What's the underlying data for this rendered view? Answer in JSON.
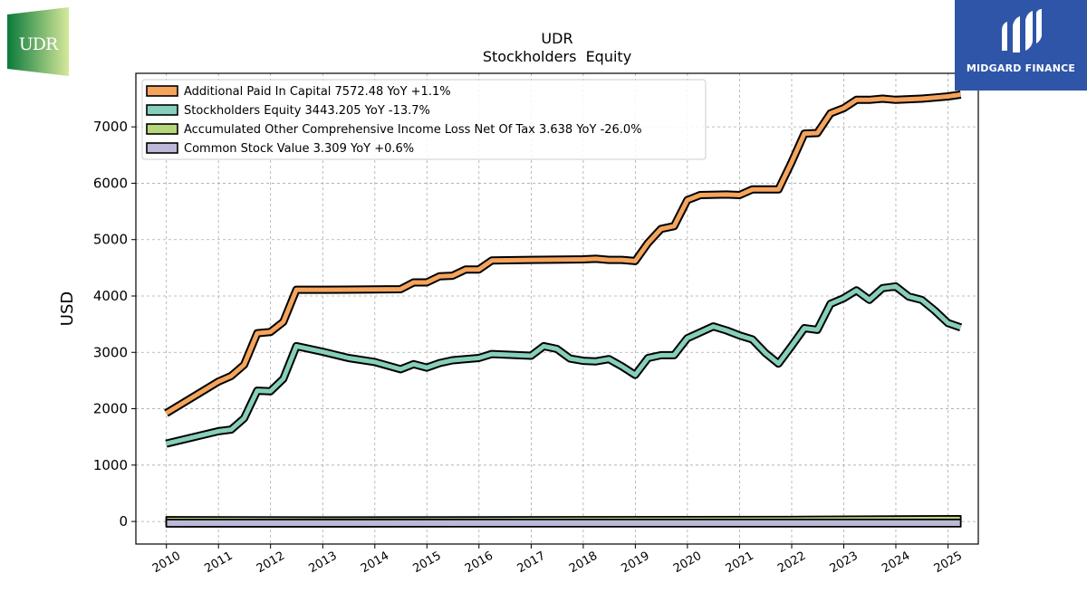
{
  "logos": {
    "left_text": "UDR",
    "left_colors": [
      "#0a7a3a",
      "#d6e89a"
    ],
    "right_text": "MIDGARD FINANCE",
    "right_bg": "#2e55a8"
  },
  "chart_data": {
    "type": "line",
    "title": "UDR",
    "subtitle": "Stockholders  Equity",
    "ylabel": "USD",
    "xlabel": "",
    "grid": true,
    "legend_position": "top-left",
    "ylim": [
      -400,
      7950
    ],
    "xlim": [
      "2009-06-01",
      "2025-08-01"
    ],
    "y_ticks": [
      0,
      1000,
      2000,
      3000,
      4000,
      5000,
      6000,
      7000
    ],
    "x_ticks": [
      "2010",
      "2011",
      "2012",
      "2013",
      "2014",
      "2015",
      "2016",
      "2017",
      "2018",
      "2019",
      "2020",
      "2021",
      "2022",
      "2023",
      "2024",
      "2025"
    ],
    "series": [
      {
        "name": "Additional Paid In Capital  7572.48 YoY +1.1%",
        "color": "#f4a45c",
        "points": [
          [
            "2009-12-31",
            1920
          ],
          [
            "2010-12-31",
            2480
          ],
          [
            "2011-03-31",
            2580
          ],
          [
            "2011-06-30",
            2780
          ],
          [
            "2011-09-30",
            3340
          ],
          [
            "2011-12-31",
            3360
          ],
          [
            "2012-03-31",
            3540
          ],
          [
            "2012-06-30",
            4110
          ],
          [
            "2012-12-31",
            4110
          ],
          [
            "2013-12-31",
            4115
          ],
          [
            "2014-06-30",
            4120
          ],
          [
            "2014-09-30",
            4240
          ],
          [
            "2014-12-31",
            4240
          ],
          [
            "2015-03-31",
            4350
          ],
          [
            "2015-06-30",
            4360
          ],
          [
            "2015-09-30",
            4470
          ],
          [
            "2015-12-31",
            4470
          ],
          [
            "2016-03-31",
            4630
          ],
          [
            "2016-12-31",
            4640
          ],
          [
            "2017-12-31",
            4650
          ],
          [
            "2018-03-31",
            4660
          ],
          [
            "2018-06-30",
            4640
          ],
          [
            "2018-09-30",
            4640
          ],
          [
            "2018-12-31",
            4620
          ],
          [
            "2019-03-31",
            4940
          ],
          [
            "2019-06-30",
            5190
          ],
          [
            "2019-09-30",
            5240
          ],
          [
            "2019-12-31",
            5700
          ],
          [
            "2020-03-31",
            5790
          ],
          [
            "2020-09-30",
            5800
          ],
          [
            "2020-12-31",
            5790
          ],
          [
            "2021-03-31",
            5890
          ],
          [
            "2021-06-30",
            5890
          ],
          [
            "2021-09-30",
            5890
          ],
          [
            "2021-12-31",
            6370
          ],
          [
            "2022-03-31",
            6880
          ],
          [
            "2022-06-30",
            6890
          ],
          [
            "2022-09-30",
            7240
          ],
          [
            "2022-12-31",
            7330
          ],
          [
            "2023-03-31",
            7480
          ],
          [
            "2023-06-30",
            7480
          ],
          [
            "2023-09-30",
            7500
          ],
          [
            "2023-12-31",
            7480
          ],
          [
            "2024-03-31",
            7490
          ],
          [
            "2024-06-30",
            7500
          ],
          [
            "2024-09-30",
            7520
          ],
          [
            "2024-12-31",
            7540
          ],
          [
            "2025-03-31",
            7572
          ]
        ]
      },
      {
        "name": "Stockholders Equity  3443.205 YoY -13.7%",
        "color": "#86cfba",
        "points": [
          [
            "2009-12-31",
            1380
          ],
          [
            "2010-12-31",
            1600
          ],
          [
            "2011-03-31",
            1630
          ],
          [
            "2011-06-30",
            1830
          ],
          [
            "2011-09-30",
            2320
          ],
          [
            "2011-12-31",
            2310
          ],
          [
            "2012-03-31",
            2530
          ],
          [
            "2012-06-30",
            3110
          ],
          [
            "2012-12-31",
            3010
          ],
          [
            "2013-06-30",
            2900
          ],
          [
            "2013-12-31",
            2830
          ],
          [
            "2014-06-30",
            2700
          ],
          [
            "2014-09-30",
            2790
          ],
          [
            "2014-12-31",
            2730
          ],
          [
            "2015-03-31",
            2810
          ],
          [
            "2015-06-30",
            2860
          ],
          [
            "2015-12-31",
            2900
          ],
          [
            "2016-03-31",
            2970
          ],
          [
            "2016-12-31",
            2940
          ],
          [
            "2017-03-31",
            3110
          ],
          [
            "2017-06-30",
            3060
          ],
          [
            "2017-09-30",
            2890
          ],
          [
            "2017-12-31",
            2850
          ],
          [
            "2018-03-31",
            2840
          ],
          [
            "2018-06-30",
            2880
          ],
          [
            "2018-09-30",
            2750
          ],
          [
            "2018-12-31",
            2600
          ],
          [
            "2019-03-31",
            2900
          ],
          [
            "2019-06-30",
            2950
          ],
          [
            "2019-09-30",
            2950
          ],
          [
            "2019-12-31",
            3250
          ],
          [
            "2020-06-30",
            3460
          ],
          [
            "2020-09-30",
            3390
          ],
          [
            "2020-12-31",
            3300
          ],
          [
            "2021-03-31",
            3230
          ],
          [
            "2021-06-30",
            2990
          ],
          [
            "2021-09-30",
            2800
          ],
          [
            "2021-12-31",
            3110
          ],
          [
            "2022-03-31",
            3430
          ],
          [
            "2022-06-30",
            3400
          ],
          [
            "2022-09-30",
            3860
          ],
          [
            "2022-12-31",
            3960
          ],
          [
            "2023-03-31",
            4100
          ],
          [
            "2023-06-30",
            3930
          ],
          [
            "2023-09-30",
            4140
          ],
          [
            "2023-12-31",
            4170
          ],
          [
            "2024-03-31",
            3990
          ],
          [
            "2024-06-30",
            3930
          ],
          [
            "2024-09-30",
            3740
          ],
          [
            "2024-12-31",
            3520
          ],
          [
            "2025-03-31",
            3443
          ]
        ]
      },
      {
        "name": "Accumulated Other Comprehensive Income Loss Net Of Tax  3.638 YoY -26.0%",
        "color": "#b5d77a",
        "points": [
          [
            "2009-12-31",
            -15
          ],
          [
            "2012-12-31",
            -20
          ],
          [
            "2017-12-31",
            -15
          ],
          [
            "2021-12-31",
            -10
          ],
          [
            "2025-03-31",
            4
          ]
        ]
      },
      {
        "name": "Common Stock Value  3.309 YoY +0.6%",
        "color": "#bcb8d8",
        "points": [
          [
            "2009-12-31",
            2
          ],
          [
            "2015-12-31",
            3
          ],
          [
            "2020-12-31",
            3
          ],
          [
            "2025-03-31",
            3
          ]
        ]
      }
    ]
  }
}
